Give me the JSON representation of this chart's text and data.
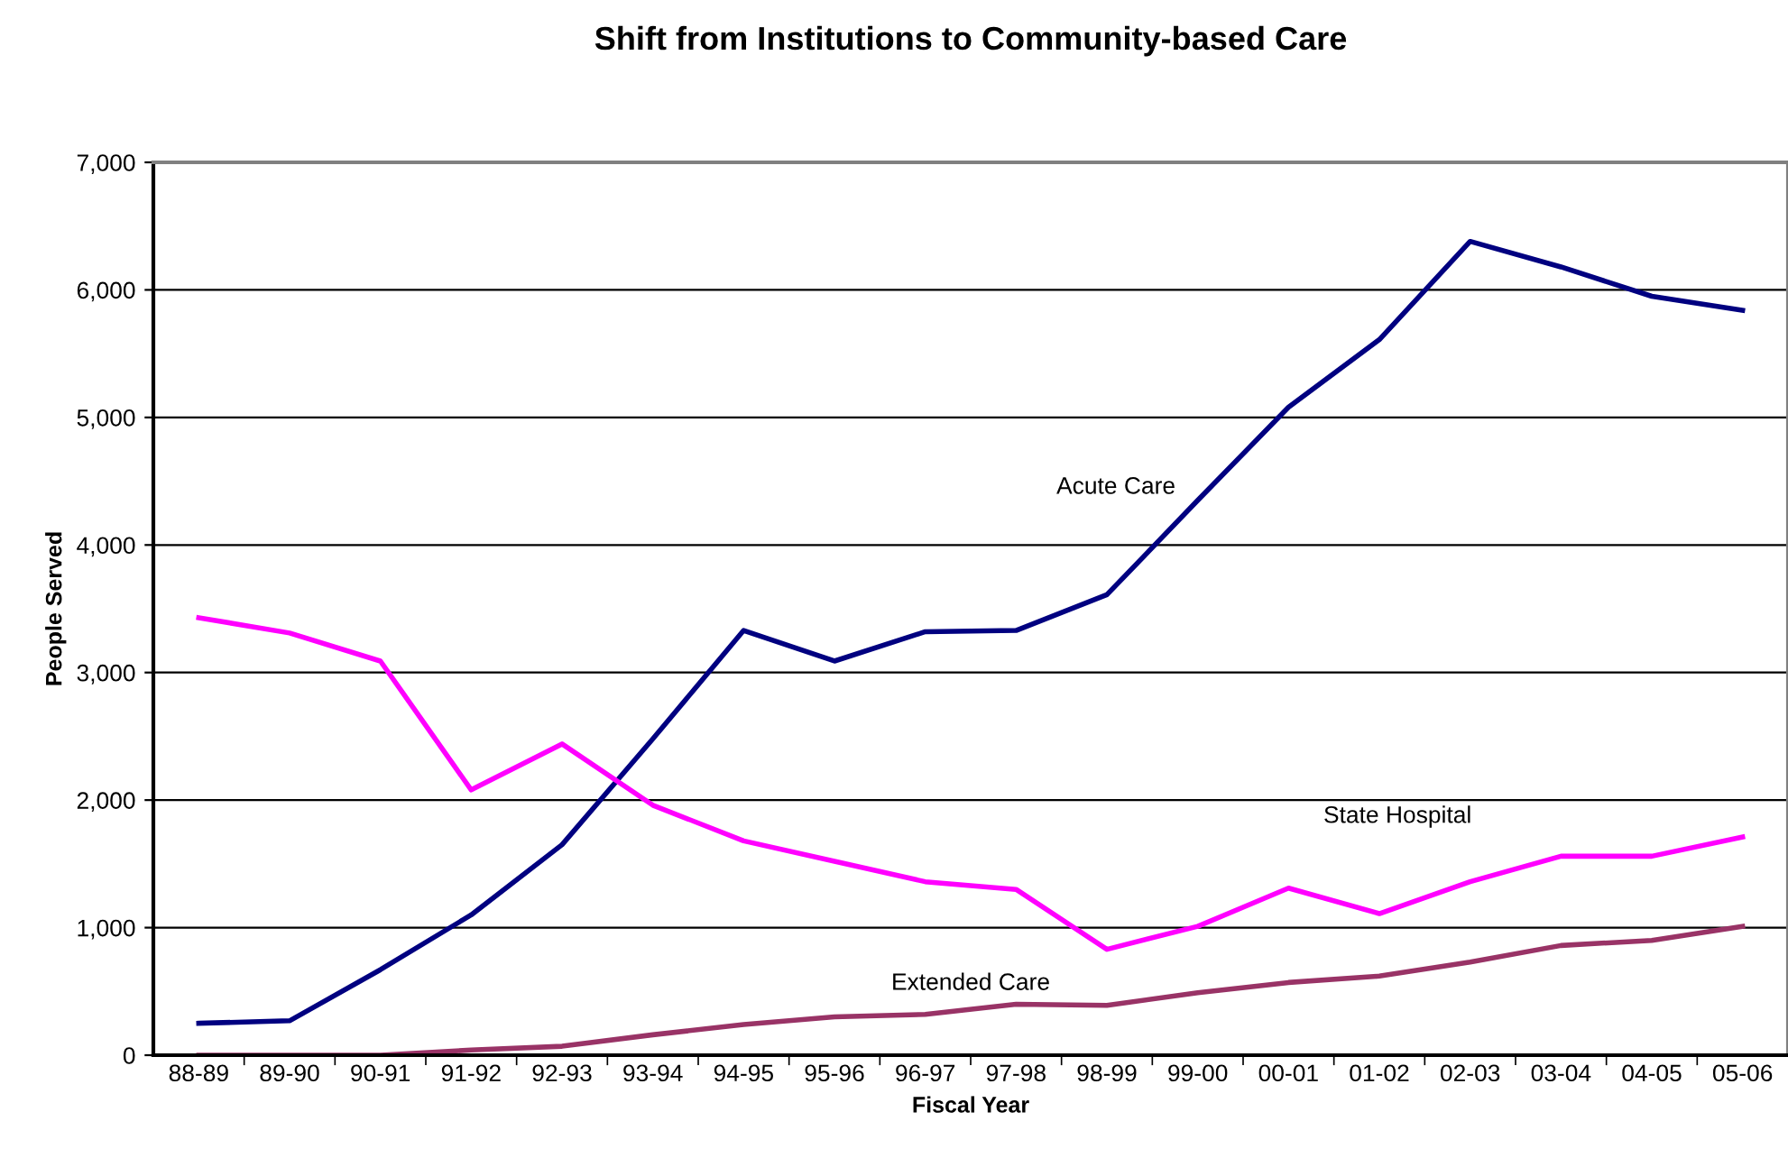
{
  "chart_data": {
    "type": "line",
    "title": "Shift from Institutions to Community-based Care",
    "xlabel": "Fiscal Year",
    "ylabel": "People Served",
    "categories": [
      "88-89",
      "89-90",
      "90-91",
      "91-92",
      "92-93",
      "93-94",
      "94-95",
      "95-96",
      "96-97",
      "97-98",
      "98-99",
      "99-00",
      "00-01",
      "01-02",
      "02-03",
      "03-04",
      "04-05",
      "05-06"
    ],
    "series": [
      {
        "name": "Acute Care",
        "color": "#000080",
        "values": [
          250,
          270,
          670,
          1100,
          1650,
          2480,
          3330,
          3090,
          3320,
          3330,
          3610,
          4350,
          5080,
          5610,
          6380,
          6180,
          5950,
          5840
        ]
      },
      {
        "name": "State Hospital",
        "color": "#ff00ff",
        "values": [
          3430,
          3310,
          3090,
          2080,
          2440,
          1960,
          1680,
          1520,
          1360,
          1300,
          830,
          1010,
          1310,
          1110,
          1360,
          1560,
          1560,
          1710
        ]
      },
      {
        "name": "Extended Care",
        "color": "#993366",
        "values": [
          0,
          0,
          0,
          40,
          70,
          160,
          240,
          300,
          320,
          400,
          390,
          490,
          570,
          620,
          730,
          860,
          900,
          1010
        ]
      }
    ],
    "ylim": [
      0,
      7000
    ],
    "yticks": [
      {
        "value": 0,
        "label": "0"
      },
      {
        "value": 1000,
        "label": "1,000"
      },
      {
        "value": 2000,
        "label": "2,000"
      },
      {
        "value": 3000,
        "label": "3,000"
      },
      {
        "value": 4000,
        "label": "4,000"
      },
      {
        "value": 5000,
        "label": "5,000"
      },
      {
        "value": 6000,
        "label": "6,000"
      },
      {
        "value": 7000,
        "label": "7,000"
      }
    ],
    "grid": "y",
    "legend": false,
    "marker": "none",
    "line_style": "solid"
  }
}
